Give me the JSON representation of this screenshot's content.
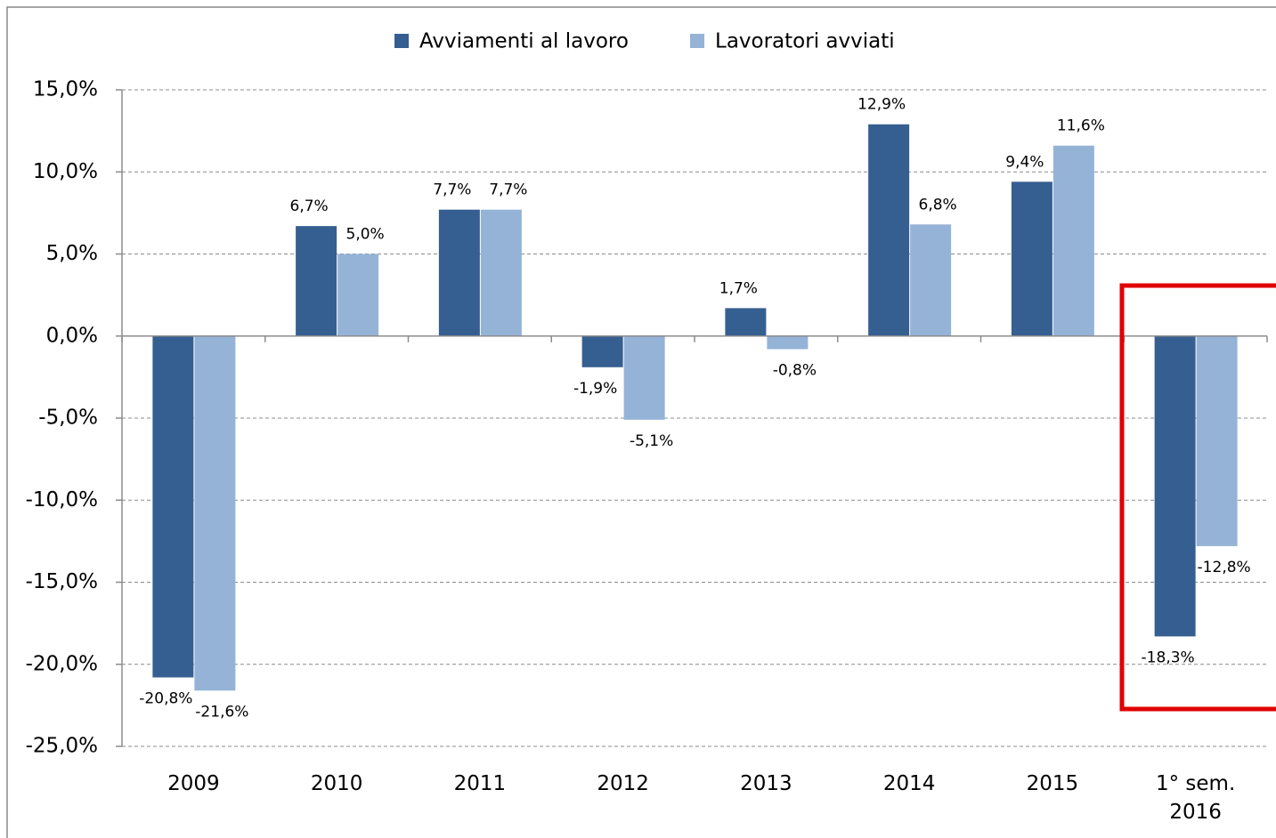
{
  "chart_data": {
    "type": "bar",
    "categories": [
      "2009",
      "2010",
      "2011",
      "2012",
      "2013",
      "2014",
      "2015",
      "1° sem. 2016"
    ],
    "series": [
      {
        "name": "Avviamenti al lavoro",
        "color": "#365f91",
        "values": [
          -20.8,
          6.7,
          7.7,
          -1.9,
          1.7,
          12.9,
          9.4,
          -18.3
        ],
        "value_labels": [
          "-20,8%",
          "6,7%",
          "7,7%",
          "-1,9%",
          "1,7%",
          "12,9%",
          "9,4%",
          "-18,3%"
        ]
      },
      {
        "name": "Lavoratori avviati",
        "color": "#95b3d7",
        "values": [
          -21.6,
          5.0,
          7.7,
          -5.1,
          -0.8,
          6.8,
          11.6,
          -12.8
        ],
        "value_labels": [
          "-21,6%",
          "5,0%",
          "7,7%",
          "-5,1%",
          "-0,8%",
          "6,8%",
          "11,6%",
          "-12,8%"
        ]
      }
    ],
    "ylim": [
      -25,
      15
    ],
    "yticks": [
      {
        "value": -25,
        "label": "-25,0%"
      },
      {
        "value": -20,
        "label": "-20,0%"
      },
      {
        "value": -15,
        "label": "-15,0%"
      },
      {
        "value": -10,
        "label": "-10,0%"
      },
      {
        "value": -5,
        "label": "-5,0%"
      },
      {
        "value": 0,
        "label": "0,0%"
      },
      {
        "value": 5,
        "label": "5,0%"
      },
      {
        "value": 10,
        "label": "10,0%"
      },
      {
        "value": 15,
        "label": "15,0%"
      }
    ],
    "grid": true,
    "legend": "top"
  }
}
